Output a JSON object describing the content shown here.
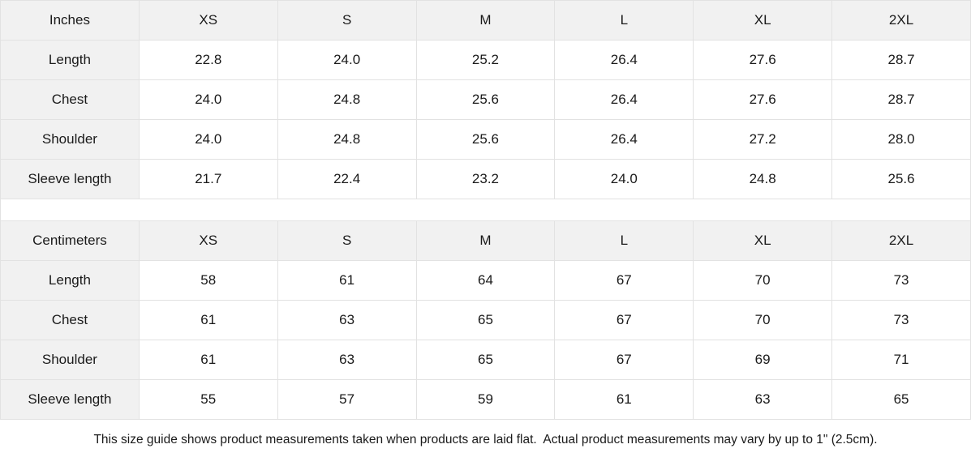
{
  "colors": {
    "header_bg": "#f1f1f1",
    "border": "#e2e2e2",
    "text": "#1a1a1a",
    "cell_bg": "#ffffff"
  },
  "size_guide": {
    "sections": [
      {
        "unit_label": "Inches",
        "size_headers": [
          "XS",
          "S",
          "M",
          "L",
          "XL",
          "2XL"
        ],
        "rows": [
          {
            "label": "Length",
            "values": [
              "22.8",
              "24.0",
              "25.2",
              "26.4",
              "27.6",
              "28.7"
            ]
          },
          {
            "label": "Chest",
            "values": [
              "24.0",
              "24.8",
              "25.6",
              "26.4",
              "27.6",
              "28.7"
            ]
          },
          {
            "label": "Shoulder",
            "values": [
              "24.0",
              "24.8",
              "25.6",
              "26.4",
              "27.2",
              "28.0"
            ]
          },
          {
            "label": "Sleeve length",
            "values": [
              "21.7",
              "22.4",
              "23.2",
              "24.0",
              "24.8",
              "25.6"
            ]
          }
        ]
      },
      {
        "unit_label": "Centimeters",
        "size_headers": [
          "XS",
          "S",
          "M",
          "L",
          "XL",
          "2XL"
        ],
        "rows": [
          {
            "label": "Length",
            "values": [
              "58",
              "61",
              "64",
              "67",
              "70",
              "73"
            ]
          },
          {
            "label": "Chest",
            "values": [
              "61",
              "63",
              "65",
              "67",
              "70",
              "73"
            ]
          },
          {
            "label": "Shoulder",
            "values": [
              "61",
              "63",
              "65",
              "67",
              "69",
              "71"
            ]
          },
          {
            "label": "Sleeve length",
            "values": [
              "55",
              "57",
              "59",
              "61",
              "63",
              "65"
            ]
          }
        ]
      }
    ],
    "footer_note": "This size guide shows product measurements taken when products are laid flat.  Actual product measurements may vary by up to 1\" (2.5cm)."
  }
}
